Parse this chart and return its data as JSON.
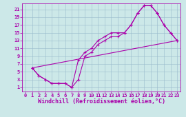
{
  "xlabel": "Windchill (Refroidissement éolien,°C)",
  "xlim": [
    -0.5,
    23.5
  ],
  "ylim": [
    0,
    22.5
  ],
  "xticks": [
    0,
    1,
    2,
    3,
    4,
    5,
    6,
    7,
    8,
    9,
    10,
    11,
    12,
    13,
    14,
    15,
    16,
    17,
    18,
    19,
    20,
    21,
    22,
    23
  ],
  "yticks": [
    1,
    3,
    5,
    7,
    9,
    11,
    13,
    15,
    17,
    19,
    21
  ],
  "background_color": "#cce8e8",
  "line_color": "#aa00aa",
  "line1_x": [
    1,
    2,
    3,
    4,
    5,
    6,
    7,
    8,
    9,
    10,
    11,
    12,
    13,
    14,
    15,
    16,
    17,
    18,
    19,
    20,
    21,
    22,
    23
  ],
  "line1_y": [
    6,
    4,
    3,
    2,
    2,
    2,
    1,
    8,
    10,
    11,
    13,
    14,
    15,
    15,
    15,
    17,
    20,
    22,
    22,
    20,
    17,
    15,
    13
  ],
  "line2_x": [
    1,
    2,
    3,
    4,
    5,
    6,
    7,
    8,
    9,
    10,
    11,
    12,
    13,
    14,
    15,
    16,
    17,
    18,
    19,
    20,
    21,
    22,
    23
  ],
  "line2_y": [
    6,
    4,
    3,
    2,
    2,
    2,
    1,
    3,
    9,
    10,
    12,
    13,
    14,
    14,
    15,
    17,
    20,
    22,
    22,
    20,
    17,
    15,
    13
  ],
  "line3_x": [
    1,
    23
  ],
  "line3_y": [
    6,
    13
  ],
  "grid_color": "#99bbcc",
  "font_size_tick": 5.0,
  "font_size_xlabel": 6.0
}
